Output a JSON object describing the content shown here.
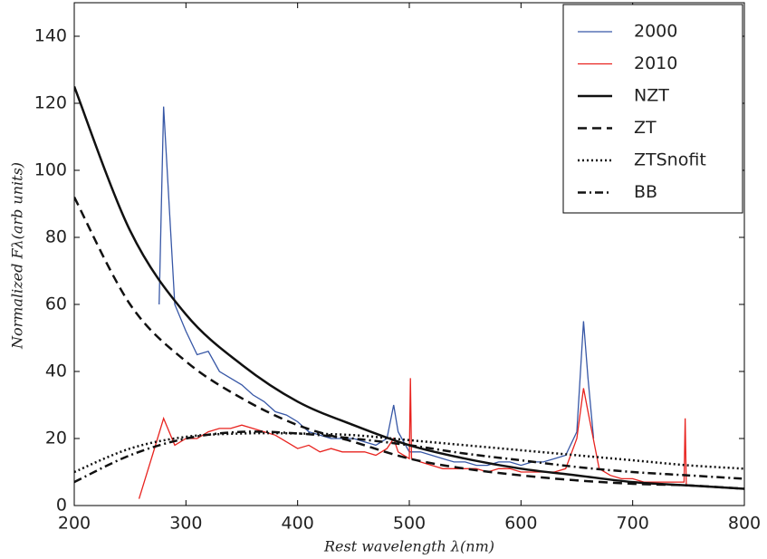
{
  "chart_data": {
    "type": "line",
    "xlabel": "Rest wavelength λ(nm)",
    "ylabel": "Normalized Fλ(arb units)",
    "xlim": [
      200,
      800
    ],
    "ylim": [
      0,
      150
    ],
    "xticks": [
      200,
      300,
      400,
      500,
      600,
      700,
      800
    ],
    "yticks": [
      0,
      20,
      40,
      60,
      80,
      100,
      120,
      140
    ],
    "legend": "upper right",
    "series": [
      {
        "name": "2000",
        "color": "#3757a6",
        "style": "solid",
        "x": [
          276,
          280,
          290,
          300,
          310,
          320,
          330,
          340,
          350,
          360,
          370,
          380,
          390,
          400,
          410,
          420,
          430,
          440,
          450,
          460,
          470,
          480,
          486,
          490,
          500,
          510,
          520,
          530,
          540,
          550,
          560,
          570,
          580,
          590,
          600,
          610,
          620,
          630,
          640,
          650,
          656,
          660,
          665
        ],
        "values": [
          60,
          119,
          60,
          52,
          45,
          46,
          40,
          38,
          36,
          33,
          31,
          28,
          27,
          25,
          22,
          21,
          20,
          20,
          20,
          19,
          18,
          20,
          30,
          22,
          16,
          16,
          15,
          14,
          13,
          13,
          12,
          12,
          13,
          13,
          12,
          13,
          13,
          14,
          15,
          22,
          55,
          38,
          20
        ]
      },
      {
        "name": "2010",
        "color": "#e8231f",
        "style": "solid",
        "x": [
          258,
          270,
          280,
          290,
          300,
          310,
          320,
          330,
          340,
          350,
          360,
          370,
          380,
          390,
          400,
          410,
          420,
          430,
          440,
          450,
          460,
          470,
          480,
          486,
          490,
          500,
          501,
          502,
          510,
          520,
          530,
          540,
          550,
          560,
          570,
          580,
          590,
          600,
          610,
          620,
          630,
          640,
          650,
          656,
          660,
          670,
          680,
          690,
          700,
          710,
          720,
          730,
          740,
          746,
          747,
          748,
          750
        ],
        "values": [
          2,
          15,
          26,
          18,
          20,
          20,
          22,
          23,
          23,
          24,
          23,
          22,
          21,
          19,
          17,
          18,
          16,
          17,
          16,
          16,
          16,
          15,
          17,
          20,
          16,
          14,
          38,
          14,
          13,
          12,
          11,
          11,
          11,
          11,
          10,
          11,
          11,
          10,
          10,
          10,
          10,
          11,
          20,
          35,
          28,
          11,
          9,
          8,
          8,
          7,
          7,
          7,
          7,
          7,
          26,
          6,
          6
        ]
      },
      {
        "name": "NZT",
        "color": "#111111",
        "style": "solid",
        "x": [
          200,
          250,
          300,
          350,
          400,
          450,
          500,
          550,
          600,
          650,
          700,
          750,
          800
        ],
        "values": [
          125,
          82,
          57,
          42,
          31,
          24,
          18,
          14,
          11,
          9,
          7,
          6,
          5
        ]
      },
      {
        "name": "ZT",
        "color": "#111111",
        "style": "dashed",
        "x": [
          200,
          250,
          300,
          350,
          400,
          450,
          500,
          550,
          600,
          650,
          700,
          750,
          800
        ],
        "values": [
          92,
          60,
          43,
          32,
          24,
          19,
          14,
          11,
          9,
          7.5,
          6.5,
          6,
          5
        ]
      },
      {
        "name": "ZTSnofit",
        "color": "#111111",
        "style": "dotted",
        "x": [
          200,
          250,
          300,
          350,
          400,
          450,
          500,
          550,
          600,
          650,
          700,
          750,
          800
        ],
        "values": [
          10,
          17,
          20.5,
          21.5,
          21.5,
          21,
          19.5,
          18,
          16.5,
          15,
          13.5,
          12,
          11
        ]
      },
      {
        "name": "BB",
        "color": "#111111",
        "style": "dashdot",
        "x": [
          200,
          250,
          300,
          350,
          400,
          450,
          500,
          550,
          600,
          650,
          700,
          750,
          800
        ],
        "values": [
          7,
          15,
          20,
          22,
          21.5,
          20,
          18,
          15.5,
          13.5,
          11.5,
          10,
          9,
          8
        ]
      }
    ]
  }
}
